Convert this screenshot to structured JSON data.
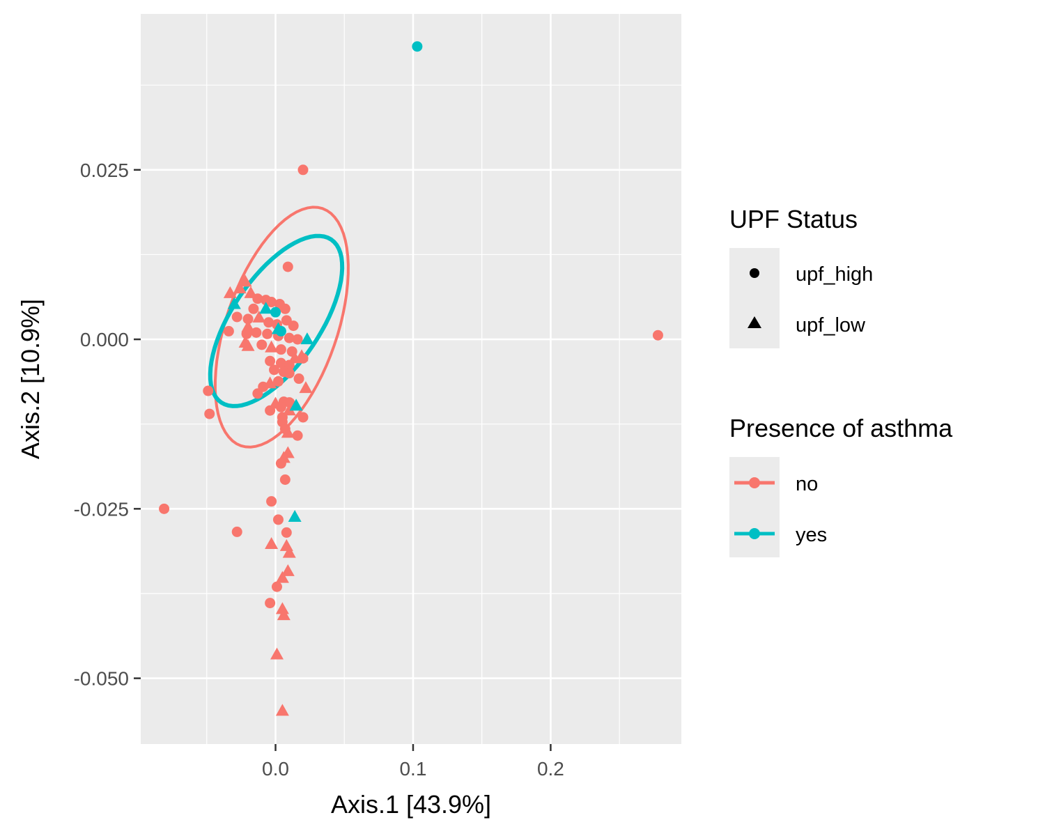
{
  "chart_data": {
    "type": "scatter",
    "xlabel": "Axis.1   [43.9%]",
    "ylabel": "Axis.2   [10.9%]",
    "xlim": [
      -0.098,
      0.295
    ],
    "ylim": [
      -0.0597,
      0.048
    ],
    "xticks": [
      {
        "value": 0.0,
        "label": "0.0"
      },
      {
        "value": 0.1,
        "label": "0.1"
      },
      {
        "value": 0.2,
        "label": "0.2"
      }
    ],
    "x_minor": [
      -0.05,
      0.05,
      0.15,
      0.25
    ],
    "yticks": [
      {
        "value": 0.025,
        "label": "0.025"
      },
      {
        "value": 0.0,
        "label": "0.000"
      },
      {
        "value": -0.025,
        "label": "-0.025"
      },
      {
        "value": -0.05,
        "label": "-0.050"
      }
    ],
    "y_minor": [
      0.0375,
      0.0125,
      -0.0125,
      -0.0375
    ],
    "grid": true,
    "background": "#ebebeb",
    "colors": {
      "no": "#f8766d",
      "yes": "#00bfc4"
    },
    "legends": {
      "shape": {
        "title": "UPF Status",
        "items": [
          {
            "label": "upf_high",
            "shape": "circle"
          },
          {
            "label": "upf_low",
            "shape": "triangle"
          }
        ]
      },
      "color": {
        "title": "Presence of asthma",
        "items": [
          {
            "label": "no",
            "color": "#f8766d"
          },
          {
            "label": "yes",
            "color": "#00bfc4"
          }
        ]
      },
      "position": "right"
    },
    "ellipses": [
      {
        "group": "no",
        "cx": 0.0045,
        "cy": 0.0018,
        "rx": 0.0185,
        "ry": 0.0082,
        "angle_deg": -71
      },
      {
        "group": "yes",
        "cx": 0.0005,
        "cy": 0.0027,
        "rx": 0.0145,
        "ry": 0.0065,
        "angle_deg": -56
      }
    ],
    "series": [
      {
        "name": "no",
        "points": [
          {
            "x": 0.02,
            "y": 0.025,
            "shape": "circle"
          },
          {
            "x": 0.278,
            "y": 0.0006,
            "shape": "circle"
          },
          {
            "x": 0.009,
            "y": 0.0107,
            "shape": "circle"
          },
          {
            "x": -0.033,
            "y": 0.0068,
            "shape": "triangle"
          },
          {
            "x": -0.022,
            "y": 0.0085,
            "shape": "triangle"
          },
          {
            "x": -0.026,
            "y": 0.0075,
            "shape": "triangle"
          },
          {
            "x": -0.018,
            "y": 0.0068,
            "shape": "triangle"
          },
          {
            "x": -0.013,
            "y": 0.006,
            "shape": "circle"
          },
          {
            "x": -0.007,
            "y": 0.0058,
            "shape": "circle"
          },
          {
            "x": -0.003,
            "y": 0.0055,
            "shape": "circle"
          },
          {
            "x": 0.003,
            "y": 0.0052,
            "shape": "circle"
          },
          {
            "x": 0.007,
            "y": 0.0045,
            "shape": "circle"
          },
          {
            "x": -0.016,
            "y": 0.0045,
            "shape": "circle"
          },
          {
            "x": -0.028,
            "y": 0.0033,
            "shape": "circle"
          },
          {
            "x": -0.02,
            "y": 0.003,
            "shape": "circle"
          },
          {
            "x": -0.012,
            "y": 0.0032,
            "shape": "triangle"
          },
          {
            "x": -0.005,
            "y": 0.0025,
            "shape": "circle"
          },
          {
            "x": 0.001,
            "y": 0.0022,
            "shape": "circle"
          },
          {
            "x": 0.008,
            "y": 0.0028,
            "shape": "circle"
          },
          {
            "x": 0.013,
            "y": 0.002,
            "shape": "circle"
          },
          {
            "x": -0.034,
            "y": 0.0012,
            "shape": "circle"
          },
          {
            "x": -0.021,
            "y": 0.0008,
            "shape": "circle"
          },
          {
            "x": -0.02,
            "y": 0.0018,
            "shape": "triangle"
          },
          {
            "x": -0.014,
            "y": 0.001,
            "shape": "circle"
          },
          {
            "x": -0.006,
            "y": 0.0008,
            "shape": "circle"
          },
          {
            "x": 0.002,
            "y": 0.0005,
            "shape": "circle"
          },
          {
            "x": 0.01,
            "y": 0.0002,
            "shape": "circle"
          },
          {
            "x": 0.016,
            "y": 0.0,
            "shape": "circle"
          },
          {
            "x": -0.022,
            "y": -0.0005,
            "shape": "triangle"
          },
          {
            "x": -0.02,
            "y": -0.001,
            "shape": "triangle"
          },
          {
            "x": -0.01,
            "y": -0.0008,
            "shape": "circle"
          },
          {
            "x": -0.003,
            "y": -0.0012,
            "shape": "triangle"
          },
          {
            "x": 0.004,
            "y": -0.0015,
            "shape": "circle"
          },
          {
            "x": 0.012,
            "y": -0.0018,
            "shape": "circle"
          },
          {
            "x": 0.019,
            "y": -0.0025,
            "shape": "triangle"
          },
          {
            "x": 0.02,
            "y": -0.0028,
            "shape": "circle"
          },
          {
            "x": -0.004,
            "y": -0.0032,
            "shape": "circle"
          },
          {
            "x": 0.004,
            "y": -0.0035,
            "shape": "circle"
          },
          {
            "x": 0.01,
            "y": -0.0038,
            "shape": "circle"
          },
          {
            "x": 0.014,
            "y": -0.0028,
            "shape": "triangle"
          },
          {
            "x": -0.001,
            "y": -0.0045,
            "shape": "circle"
          },
          {
            "x": 0.006,
            "y": -0.0048,
            "shape": "circle"
          },
          {
            "x": 0.01,
            "y": -0.005,
            "shape": "circle"
          },
          {
            "x": 0.017,
            "y": -0.0058,
            "shape": "circle"
          },
          {
            "x": -0.009,
            "y": -0.007,
            "shape": "circle"
          },
          {
            "x": -0.004,
            "y": -0.0065,
            "shape": "triangle"
          },
          {
            "x": 0.002,
            "y": -0.0062,
            "shape": "circle"
          },
          {
            "x": 0.022,
            "y": -0.0072,
            "shape": "triangle"
          },
          {
            "x": -0.049,
            "y": -0.0076,
            "shape": "circle"
          },
          {
            "x": -0.013,
            "y": -0.008,
            "shape": "circle"
          },
          {
            "x": 0.0,
            "y": -0.0095,
            "shape": "triangle"
          },
          {
            "x": 0.006,
            "y": -0.0092,
            "shape": "circle"
          },
          {
            "x": 0.01,
            "y": -0.0093,
            "shape": "circle"
          },
          {
            "x": 0.004,
            "y": -0.01,
            "shape": "circle"
          },
          {
            "x": 0.013,
            "y": -0.0098,
            "shape": "triangle"
          },
          {
            "x": 0.01,
            "y": -0.0105,
            "shape": "triangle"
          },
          {
            "x": -0.004,
            "y": -0.0105,
            "shape": "circle"
          },
          {
            "x": -0.048,
            "y": -0.011,
            "shape": "circle"
          },
          {
            "x": 0.005,
            "y": -0.0115,
            "shape": "circle"
          },
          {
            "x": 0.02,
            "y": -0.0115,
            "shape": "circle"
          },
          {
            "x": 0.005,
            "y": -0.0122,
            "shape": "circle"
          },
          {
            "x": 0.007,
            "y": -0.0132,
            "shape": "circle"
          },
          {
            "x": 0.009,
            "y": -0.0138,
            "shape": "triangle"
          },
          {
            "x": 0.016,
            "y": -0.0142,
            "shape": "circle"
          },
          {
            "x": 0.009,
            "y": -0.0168,
            "shape": "triangle"
          },
          {
            "x": 0.006,
            "y": -0.0175,
            "shape": "triangle"
          },
          {
            "x": 0.004,
            "y": -0.0183,
            "shape": "circle"
          },
          {
            "x": 0.007,
            "y": -0.0207,
            "shape": "circle"
          },
          {
            "x": -0.003,
            "y": -0.0239,
            "shape": "circle"
          },
          {
            "x": 0.002,
            "y": -0.0266,
            "shape": "circle"
          },
          {
            "x": -0.081,
            "y": -0.025,
            "shape": "circle"
          },
          {
            "x": -0.028,
            "y": -0.0284,
            "shape": "circle"
          },
          {
            "x": 0.008,
            "y": -0.0285,
            "shape": "circle"
          },
          {
            "x": -0.003,
            "y": -0.0302,
            "shape": "triangle"
          },
          {
            "x": 0.008,
            "y": -0.0305,
            "shape": "triangle"
          },
          {
            "x": 0.01,
            "y": -0.0315,
            "shape": "triangle"
          },
          {
            "x": 0.009,
            "y": -0.0342,
            "shape": "triangle"
          },
          {
            "x": 0.005,
            "y": -0.0352,
            "shape": "triangle"
          },
          {
            "x": 0.001,
            "y": -0.0365,
            "shape": "circle"
          },
          {
            "x": -0.004,
            "y": -0.0389,
            "shape": "circle"
          },
          {
            "x": 0.005,
            "y": -0.0398,
            "shape": "triangle"
          },
          {
            "x": 0.006,
            "y": -0.0407,
            "shape": "triangle"
          },
          {
            "x": 0.001,
            "y": -0.0465,
            "shape": "triangle"
          },
          {
            "x": 0.005,
            "y": -0.0548,
            "shape": "triangle"
          }
        ]
      },
      {
        "name": "yes",
        "points": [
          {
            "x": 0.103,
            "y": 0.0432,
            "shape": "circle"
          },
          {
            "x": -0.03,
            "y": 0.0052,
            "shape": "triangle"
          },
          {
            "x": -0.007,
            "y": 0.0045,
            "shape": "triangle"
          },
          {
            "x": 0.0,
            "y": 0.004,
            "shape": "circle"
          },
          {
            "x": 0.004,
            "y": 0.0012,
            "shape": "circle"
          },
          {
            "x": 0.002,
            "y": 0.0015,
            "shape": "triangle"
          },
          {
            "x": 0.023,
            "y": 0.0,
            "shape": "triangle"
          },
          {
            "x": 0.015,
            "y": -0.0098,
            "shape": "triangle"
          },
          {
            "x": 0.014,
            "y": -0.0262,
            "shape": "triangle"
          }
        ]
      }
    ]
  }
}
